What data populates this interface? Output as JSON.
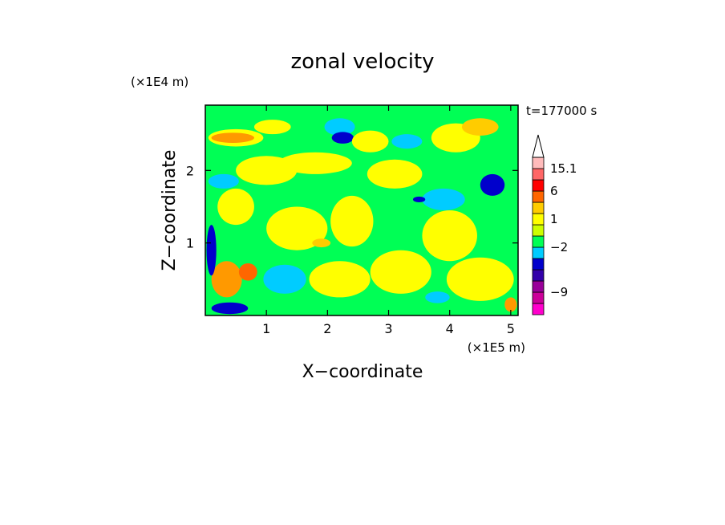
{
  "chart_data": {
    "type": "heatmap",
    "title": "zonal velocity",
    "time_label": "t=177000 s",
    "xlabel": "X−coordinate",
    "ylabel": "Z−coordinate",
    "x_unit": "(×1E5 m)",
    "y_unit": "(×1E4 m)",
    "xlim": [
      0,
      5.12
    ],
    "ylim": [
      0,
      2.9
    ],
    "x_ticks": [
      1,
      2,
      3,
      4,
      5
    ],
    "x_tick_labels": [
      "1",
      "2",
      "3",
      "4",
      "5"
    ],
    "y_ticks": [
      1,
      2
    ],
    "y_tick_labels": [
      "1",
      "2"
    ],
    "colorbar": {
      "levels": [
        {
          "color": "#ff00cc"
        },
        {
          "color": "#cc0099"
        },
        {
          "color": "#990099"
        },
        {
          "color": "#3300aa"
        },
        {
          "color": "#0000cc"
        },
        {
          "color": "#00ccff"
        },
        {
          "color": "#00ff55"
        },
        {
          "color": "#ccff00"
        },
        {
          "color": "#ffff00"
        },
        {
          "color": "#ffcc00"
        },
        {
          "color": "#ff6600"
        },
        {
          "color": "#ff0000"
        },
        {
          "color": "#ff6666"
        },
        {
          "color": "#ffbbbb"
        }
      ],
      "labels": [
        {
          "text": "15.1",
          "at": 13
        },
        {
          "text": "6",
          "at": 11
        },
        {
          "text": "1",
          "at": 8.5
        },
        {
          "text": "−2",
          "at": 6
        },
        {
          "text": "−9",
          "at": 2
        }
      ]
    },
    "field": {
      "background": "#00ff55",
      "patches": [
        {
          "x": 0.5,
          "z": 2.45,
          "rx": 0.45,
          "rz": 0.12,
          "color": "#ffff00"
        },
        {
          "x": 0.45,
          "z": 2.45,
          "rx": 0.35,
          "rz": 0.07,
          "color": "#ff9900"
        },
        {
          "x": 1.1,
          "z": 2.6,
          "rx": 0.3,
          "rz": 0.1,
          "color": "#ffff00"
        },
        {
          "x": 2.2,
          "z": 2.6,
          "rx": 0.25,
          "rz": 0.12,
          "color": "#00ccff"
        },
        {
          "x": 2.25,
          "z": 2.45,
          "rx": 0.18,
          "rz": 0.08,
          "color": "#0000cc"
        },
        {
          "x": 2.7,
          "z": 2.4,
          "rx": 0.3,
          "rz": 0.15,
          "color": "#ffff00"
        },
        {
          "x": 3.3,
          "z": 2.4,
          "rx": 0.25,
          "rz": 0.1,
          "color": "#00ccff"
        },
        {
          "x": 4.1,
          "z": 2.45,
          "rx": 0.4,
          "rz": 0.2,
          "color": "#ffff00"
        },
        {
          "x": 4.5,
          "z": 2.6,
          "rx": 0.3,
          "rz": 0.12,
          "color": "#ffcc00"
        },
        {
          "x": 1.8,
          "z": 2.1,
          "rx": 0.6,
          "rz": 0.15,
          "color": "#ffff00"
        },
        {
          "x": 1.0,
          "z": 2.0,
          "rx": 0.5,
          "rz": 0.2,
          "color": "#ffff00"
        },
        {
          "x": 0.3,
          "z": 1.85,
          "rx": 0.25,
          "rz": 0.1,
          "color": "#00ccff"
        },
        {
          "x": 3.1,
          "z": 1.95,
          "rx": 0.45,
          "rz": 0.2,
          "color": "#ffff00"
        },
        {
          "x": 4.7,
          "z": 1.8,
          "rx": 0.2,
          "rz": 0.15,
          "color": "#0000cc"
        },
        {
          "x": 3.9,
          "z": 1.6,
          "rx": 0.35,
          "rz": 0.15,
          "color": "#00ccff"
        },
        {
          "x": 3.5,
          "z": 1.6,
          "rx": 0.1,
          "rz": 0.04,
          "color": "#0000cc"
        },
        {
          "x": 2.4,
          "z": 1.3,
          "rx": 0.35,
          "rz": 0.35,
          "color": "#ffff00"
        },
        {
          "x": 1.5,
          "z": 1.2,
          "rx": 0.5,
          "rz": 0.3,
          "color": "#ffff00"
        },
        {
          "x": 1.9,
          "z": 1.0,
          "rx": 0.15,
          "rz": 0.06,
          "color": "#ffcc00"
        },
        {
          "x": 4.0,
          "z": 1.1,
          "rx": 0.45,
          "rz": 0.35,
          "color": "#ffff00"
        },
        {
          "x": 3.2,
          "z": 0.6,
          "rx": 0.5,
          "rz": 0.3,
          "color": "#ffff00"
        },
        {
          "x": 2.2,
          "z": 0.5,
          "rx": 0.5,
          "rz": 0.25,
          "color": "#ffff00"
        },
        {
          "x": 4.5,
          "z": 0.5,
          "rx": 0.55,
          "rz": 0.3,
          "color": "#ffff00"
        },
        {
          "x": 0.35,
          "z": 0.5,
          "rx": 0.25,
          "rz": 0.25,
          "color": "#ff9900"
        },
        {
          "x": 0.7,
          "z": 0.6,
          "rx": 0.15,
          "rz": 0.12,
          "color": "#ff6600"
        },
        {
          "x": 0.1,
          "z": 0.9,
          "rx": 0.08,
          "rz": 0.35,
          "color": "#0000cc"
        },
        {
          "x": 0.4,
          "z": 0.1,
          "rx": 0.3,
          "rz": 0.08,
          "color": "#0000cc"
        },
        {
          "x": 1.3,
          "z": 0.5,
          "rx": 0.35,
          "rz": 0.2,
          "color": "#00ccff"
        },
        {
          "x": 3.8,
          "z": 0.25,
          "rx": 0.2,
          "rz": 0.08,
          "color": "#00ccff"
        },
        {
          "x": 5.0,
          "z": 0.15,
          "rx": 0.1,
          "rz": 0.1,
          "color": "#ff9900"
        },
        {
          "x": 0.5,
          "z": 1.5,
          "rx": 0.3,
          "rz": 0.25,
          "color": "#ffff00"
        }
      ]
    }
  }
}
